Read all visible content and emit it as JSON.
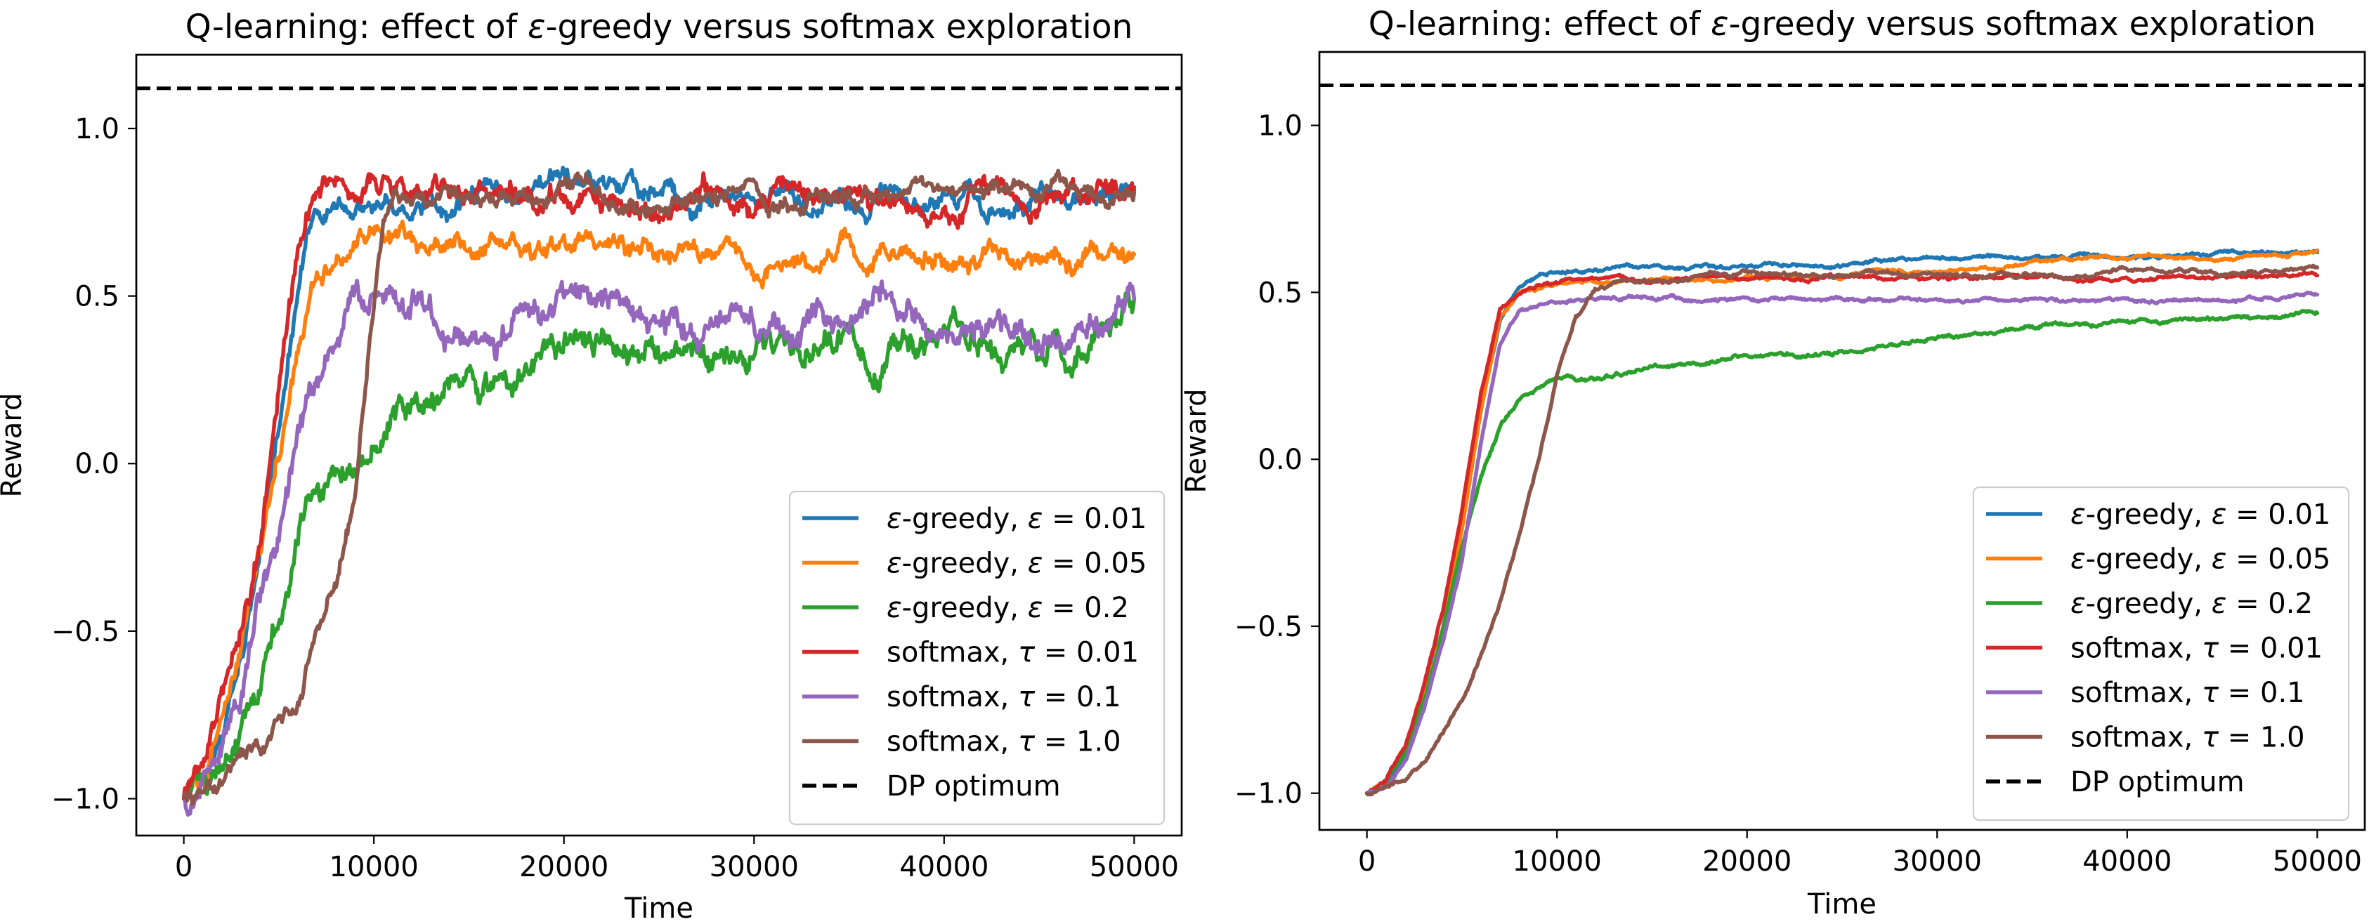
{
  "chart_data": [
    {
      "type": "line",
      "title": "Q-learning: effect of ε-greedy versus softmax exploration",
      "xlabel": "Time",
      "ylabel": "Reward",
      "xlim": [
        -2500,
        52500
      ],
      "ylim": [
        -1.11,
        1.22
      ],
      "xticks": [
        0,
        10000,
        20000,
        30000,
        40000,
        50000
      ],
      "xtick_labels": [
        "0",
        "10000",
        "20000",
        "30000",
        "40000",
        "50000"
      ],
      "yticks": [
        -1.0,
        -0.5,
        0.0,
        0.5,
        1.0
      ],
      "ytick_labels": [
        "−1.0",
        "−0.5",
        "0.0",
        "0.5",
        "1.0"
      ],
      "grid": false,
      "legend_position": "lower-right",
      "reference_line": {
        "name": "DP optimum",
        "y": 1.12,
        "style": "dashed",
        "color": "#000000"
      },
      "series": [
        {
          "name": "ε-greedy, ε = 0.01",
          "color": "#1f77b4",
          "x": [
            0,
            1000,
            2000,
            3000,
            4000,
            5000,
            6000,
            7000,
            8000,
            9000,
            10000,
            15000,
            20000,
            25000,
            30000,
            35000,
            40000,
            45000,
            50000
          ],
          "y": [
            -1.0,
            -0.95,
            -0.8,
            -0.6,
            -0.3,
            0.1,
            0.5,
            0.75,
            0.8,
            0.8,
            0.8,
            0.8,
            0.8,
            0.79,
            0.8,
            0.8,
            0.8,
            0.8,
            0.8
          ],
          "noise": 0.035
        },
        {
          "name": "ε-greedy, ε = 0.05",
          "color": "#ff7f0e",
          "x": [
            0,
            1000,
            2000,
            3000,
            4000,
            5000,
            6000,
            7000,
            8000,
            9000,
            10000,
            15000,
            20000,
            25000,
            30000,
            35000,
            40000,
            45000,
            50000
          ],
          "y": [
            -1.0,
            -0.95,
            -0.82,
            -0.6,
            -0.3,
            0.0,
            0.3,
            0.55,
            0.65,
            0.68,
            0.68,
            0.66,
            0.65,
            0.63,
            0.62,
            0.63,
            0.63,
            0.62,
            0.6
          ],
          "noise": 0.035
        },
        {
          "name": "ε-greedy, ε = 0.2",
          "color": "#2ca02c",
          "x": [
            0,
            1000,
            2000,
            3000,
            4000,
            5000,
            6000,
            7000,
            8000,
            9000,
            10000,
            12000,
            15000,
            20000,
            25000,
            30000,
            35000,
            40000,
            45000,
            50000
          ],
          "y": [
            -1.0,
            -0.97,
            -0.9,
            -0.8,
            -0.6,
            -0.45,
            -0.25,
            -0.1,
            0.0,
            0.05,
            0.12,
            0.25,
            0.28,
            0.3,
            0.32,
            0.35,
            0.35,
            0.37,
            0.35,
            0.4
          ],
          "noise": 0.05
        },
        {
          "name": "softmax, τ = 0.01",
          "color": "#d62728",
          "x": [
            0,
            1000,
            2000,
            3000,
            4000,
            5000,
            6000,
            7000,
            8000,
            9000,
            10000,
            15000,
            20000,
            25000,
            30000,
            35000,
            40000,
            45000,
            50000
          ],
          "y": [
            -1.0,
            -0.9,
            -0.75,
            -0.5,
            -0.25,
            0.2,
            0.6,
            0.78,
            0.8,
            0.8,
            0.8,
            0.8,
            0.8,
            0.79,
            0.78,
            0.8,
            0.78,
            0.78,
            0.82
          ],
          "noise": 0.04
        },
        {
          "name": "softmax, τ = 0.1",
          "color": "#9467bd",
          "x": [
            0,
            1000,
            2000,
            3000,
            4000,
            5000,
            6000,
            7000,
            8000,
            9000,
            10000,
            12000,
            15000,
            20000,
            25000,
            30000,
            35000,
            40000,
            45000,
            50000
          ],
          "y": [
            -1.0,
            -0.95,
            -0.85,
            -0.65,
            -0.4,
            -0.2,
            0.05,
            0.2,
            0.3,
            0.38,
            0.42,
            0.45,
            0.42,
            0.42,
            0.4,
            0.42,
            0.43,
            0.44,
            0.42,
            0.45
          ],
          "noise": 0.05
        },
        {
          "name": "softmax, τ = 1.0",
          "color": "#8c564b",
          "x": [
            0,
            1000,
            2000,
            3000,
            4000,
            5000,
            6000,
            7000,
            8000,
            9000,
            10000,
            10500,
            11000,
            15000,
            20000,
            25000,
            30000,
            35000,
            40000,
            45000,
            50000
          ],
          "y": [
            -1.0,
            -1.0,
            -1.0,
            -0.9,
            -0.85,
            -0.78,
            -0.7,
            -0.5,
            -0.35,
            -0.1,
            0.45,
            0.7,
            0.78,
            0.78,
            0.79,
            0.78,
            0.79,
            0.78,
            0.79,
            0.78,
            0.79
          ],
          "noise": 0.03
        }
      ]
    },
    {
      "type": "line",
      "title": "Q-learning: effect of ε-greedy versus softmax exploration",
      "xlabel": "Time",
      "ylabel": "Reward",
      "xlim": [
        -2500,
        52500
      ],
      "ylim": [
        -1.11,
        1.22
      ],
      "xticks": [
        0,
        10000,
        20000,
        30000,
        40000,
        50000
      ],
      "xtick_labels": [
        "0",
        "10000",
        "20000",
        "30000",
        "40000",
        "50000"
      ],
      "yticks": [
        -1.0,
        -0.5,
        0.0,
        0.5,
        1.0
      ],
      "ytick_labels": [
        "−1.0",
        "−0.5",
        "0.0",
        "0.5",
        "1.0"
      ],
      "grid": false,
      "legend_position": "lower-right",
      "reference_line": {
        "name": "DP optimum",
        "y": 1.12,
        "style": "dashed",
        "color": "#000000"
      },
      "series": [
        {
          "name": "ε-greedy, ε = 0.01",
          "color": "#1f77b4",
          "x": [
            0,
            1000,
            2000,
            3000,
            4000,
            5000,
            6000,
            7000,
            8000,
            9000,
            10000,
            15000,
            20000,
            25000,
            30000,
            35000,
            40000,
            45000,
            50000
          ],
          "y": [
            -1.0,
            -0.97,
            -0.88,
            -0.72,
            -0.5,
            -0.2,
            0.15,
            0.42,
            0.52,
            0.55,
            0.56,
            0.57,
            0.58,
            0.59,
            0.61,
            0.61,
            0.61,
            0.61,
            0.62
          ],
          "noise": 0.006
        },
        {
          "name": "ε-greedy, ε = 0.05",
          "color": "#ff7f0e",
          "x": [
            0,
            1000,
            2000,
            3000,
            4000,
            5000,
            6000,
            7000,
            8000,
            9000,
            10000,
            15000,
            20000,
            25000,
            30000,
            35000,
            40000,
            45000,
            50000
          ],
          "y": [
            -1.0,
            -0.97,
            -0.88,
            -0.72,
            -0.5,
            -0.2,
            0.15,
            0.42,
            0.5,
            0.51,
            0.52,
            0.53,
            0.54,
            0.55,
            0.56,
            0.6,
            0.6,
            0.61,
            0.62
          ],
          "noise": 0.006
        },
        {
          "name": "ε-greedy, ε = 0.2",
          "color": "#2ca02c",
          "x": [
            0,
            1000,
            2000,
            3000,
            4000,
            5000,
            6000,
            7000,
            8000,
            9000,
            10000,
            12000,
            15000,
            20000,
            25000,
            30000,
            35000,
            40000,
            45000,
            50000
          ],
          "y": [
            -1.0,
            -0.97,
            -0.88,
            -0.72,
            -0.5,
            -0.25,
            -0.05,
            0.1,
            0.18,
            0.22,
            0.24,
            0.24,
            0.27,
            0.3,
            0.32,
            0.36,
            0.39,
            0.41,
            0.42,
            0.43
          ],
          "noise": 0.007
        },
        {
          "name": "softmax, τ = 0.01",
          "color": "#d62728",
          "x": [
            0,
            1000,
            2000,
            3000,
            4000,
            5000,
            6000,
            7000,
            8000,
            9000,
            10000,
            15000,
            20000,
            25000,
            30000,
            35000,
            40000,
            45000,
            50000
          ],
          "y": [
            -1.0,
            -0.96,
            -0.86,
            -0.68,
            -0.45,
            -0.15,
            0.2,
            0.45,
            0.5,
            0.52,
            0.53,
            0.54,
            0.54,
            0.54,
            0.54,
            0.54,
            0.54,
            0.54,
            0.55
          ],
          "noise": 0.006
        },
        {
          "name": "softmax, τ = 0.1",
          "color": "#9467bd",
          "x": [
            0,
            1000,
            2000,
            3000,
            4000,
            5000,
            6000,
            7000,
            8000,
            9000,
            10000,
            15000,
            20000,
            25000,
            30000,
            35000,
            40000,
            45000,
            50000
          ],
          "y": [
            -1.0,
            -0.98,
            -0.9,
            -0.75,
            -0.55,
            -0.3,
            0.05,
            0.35,
            0.45,
            0.47,
            0.48,
            0.48,
            0.48,
            0.48,
            0.48,
            0.48,
            0.48,
            0.49,
            0.49
          ],
          "noise": 0.006
        },
        {
          "name": "softmax, τ = 1.0",
          "color": "#8c564b",
          "x": [
            0,
            1000,
            2000,
            3000,
            4000,
            5000,
            6000,
            7000,
            8000,
            9000,
            10000,
            11000,
            12000,
            13000,
            15000,
            20000,
            25000,
            30000,
            35000,
            40000,
            45000,
            50000
          ],
          "y": [
            -1.0,
            -0.97,
            -0.95,
            -0.9,
            -0.82,
            -0.72,
            -0.58,
            -0.42,
            -0.22,
            0.0,
            0.25,
            0.42,
            0.5,
            0.53,
            0.54,
            0.55,
            0.55,
            0.55,
            0.55,
            0.56,
            0.56,
            0.57
          ],
          "noise": 0.007
        }
      ]
    }
  ]
}
